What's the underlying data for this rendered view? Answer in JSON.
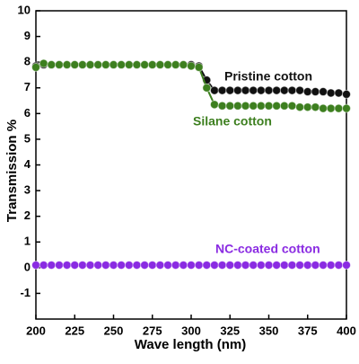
{
  "chart_data": {
    "type": "line",
    "x_label": "Wave length (nm)",
    "y_label": "Transmission %",
    "x": [
      200,
      205,
      210,
      215,
      220,
      225,
      230,
      235,
      240,
      245,
      250,
      255,
      260,
      265,
      270,
      275,
      280,
      285,
      290,
      295,
      300,
      305,
      310,
      315,
      320,
      325,
      330,
      335,
      340,
      345,
      350,
      355,
      360,
      365,
      370,
      375,
      380,
      385,
      390,
      395,
      400
    ],
    "series": [
      {
        "name": "Pristine cotton",
        "color": "#111111",
        "values": [
          7.85,
          7.9,
          7.9,
          7.9,
          7.9,
          7.9,
          7.9,
          7.9,
          7.9,
          7.9,
          7.9,
          7.9,
          7.9,
          7.9,
          7.9,
          7.9,
          7.9,
          7.9,
          7.9,
          7.9,
          7.9,
          7.85,
          7.3,
          6.9,
          6.9,
          6.9,
          6.9,
          6.9,
          6.9,
          6.9,
          6.9,
          6.9,
          6.9,
          6.9,
          6.9,
          6.85,
          6.85,
          6.85,
          6.8,
          6.8,
          6.75
        ]
      },
      {
        "name": "Silane cotton",
        "color": "#3d7f1f",
        "values": [
          7.8,
          7.95,
          7.9,
          7.9,
          7.9,
          7.9,
          7.9,
          7.9,
          7.9,
          7.9,
          7.9,
          7.9,
          7.9,
          7.9,
          7.9,
          7.9,
          7.9,
          7.9,
          7.9,
          7.9,
          7.85,
          7.8,
          7.0,
          6.35,
          6.3,
          6.3,
          6.3,
          6.3,
          6.3,
          6.3,
          6.3,
          6.3,
          6.3,
          6.3,
          6.25,
          6.25,
          6.25,
          6.2,
          6.2,
          6.2,
          6.2
        ]
      },
      {
        "name": "NC-coated cotton",
        "color": "#8a2be2",
        "values": [
          0.1,
          0.1,
          0.1,
          0.1,
          0.1,
          0.1,
          0.1,
          0.1,
          0.1,
          0.1,
          0.1,
          0.1,
          0.1,
          0.1,
          0.1,
          0.1,
          0.1,
          0.1,
          0.1,
          0.1,
          0.1,
          0.1,
          0.1,
          0.1,
          0.1,
          0.1,
          0.1,
          0.1,
          0.1,
          0.1,
          0.1,
          0.1,
          0.1,
          0.1,
          0.1,
          0.1,
          0.1,
          0.1,
          0.1,
          0.1,
          0.1
        ]
      }
    ],
    "xlim": [
      200,
      400
    ],
    "xticks": [
      200,
      225,
      250,
      275,
      300,
      325,
      350,
      375,
      400
    ],
    "ylim": [
      -2,
      10
    ],
    "yticks": [
      -1,
      0,
      1,
      2,
      3,
      4,
      5,
      6,
      7,
      8,
      9,
      10
    ]
  }
}
